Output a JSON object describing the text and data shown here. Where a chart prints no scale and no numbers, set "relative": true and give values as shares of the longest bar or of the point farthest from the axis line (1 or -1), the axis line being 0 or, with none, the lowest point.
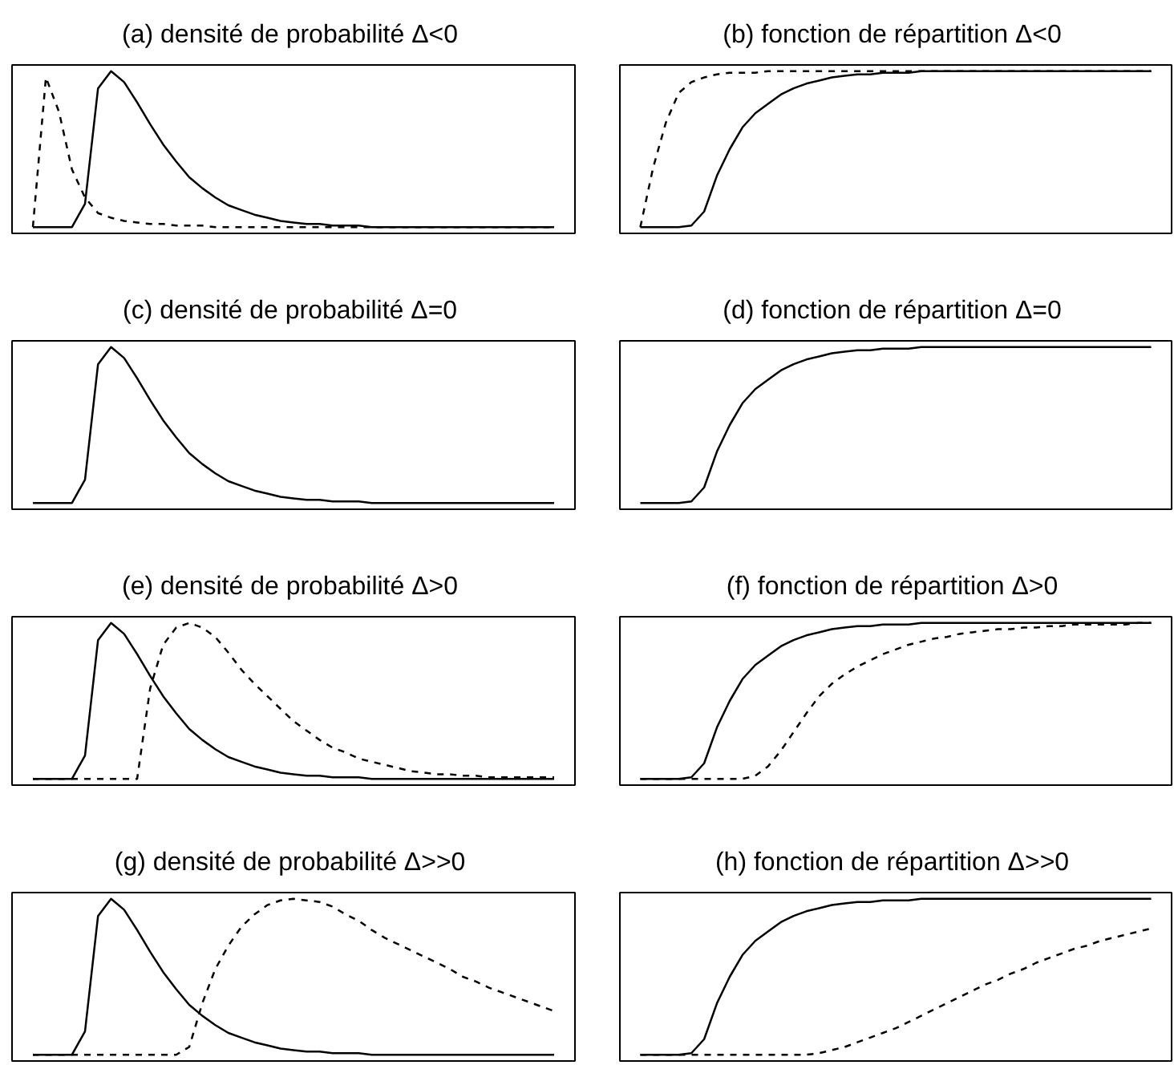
{
  "chart_data": [
    {
      "type": "line",
      "title": "(a) densité de probabilité  Δ<0",
      "relative": true,
      "tick_labels": false,
      "categories": [
        null,
        null,
        null,
        null,
        null,
        null,
        null,
        null,
        null,
        null,
        null,
        null,
        null,
        null,
        null,
        null,
        null,
        null,
        null,
        null,
        null,
        null,
        null,
        null,
        null,
        null,
        null,
        null,
        null,
        null,
        null,
        null,
        null,
        null,
        null,
        null,
        null,
        null,
        null,
        null,
        null
      ],
      "series": [
        {
          "color": "#000000",
          "line_style": "solid",
          "values": [
            0,
            0,
            0,
            0,
            0.15,
            0.89,
            1,
            0.93,
            0.8,
            0.66,
            0.53,
            0.42,
            0.32,
            0.25,
            0.19,
            0.14,
            0.11,
            0.08,
            0.06,
            0.04,
            0.03,
            0.02,
            0.02,
            0.01,
            0.01,
            0.01,
            0,
            0,
            0,
            0,
            0,
            0,
            0,
            0,
            0,
            0,
            0,
            0,
            0,
            0,
            0
          ]
        },
        {
          "color": "#000000",
          "line_style": "dashed",
          "values": [
            0,
            0.96,
            0.74,
            0.37,
            0.19,
            0.09,
            0.06,
            0.04,
            0.03,
            0.02,
            0.02,
            0.01,
            0.01,
            0.01,
            0,
            0,
            0,
            0,
            0,
            0,
            0,
            0,
            0,
            0,
            0,
            0,
            0,
            0,
            0,
            0,
            0,
            0,
            0,
            0,
            0,
            0,
            0,
            0,
            0,
            0,
            0
          ]
        }
      ]
    },
    {
      "type": "line",
      "title": "(b) fonction de répartition  Δ<0",
      "relative": true,
      "tick_labels": false,
      "categories": [
        null,
        null,
        null,
        null,
        null,
        null,
        null,
        null,
        null,
        null,
        null,
        null,
        null,
        null,
        null,
        null,
        null,
        null,
        null,
        null,
        null,
        null,
        null,
        null,
        null,
        null,
        null,
        null,
        null,
        null,
        null,
        null,
        null,
        null,
        null,
        null,
        null,
        null,
        null,
        null,
        null
      ],
      "series": [
        {
          "color": "#000000",
          "line_style": "solid",
          "values": [
            0,
            0,
            0,
            0,
            0.01,
            0.1,
            0.33,
            0.5,
            0.64,
            0.73,
            0.79,
            0.85,
            0.89,
            0.92,
            0.94,
            0.96,
            0.97,
            0.98,
            0.98,
            0.99,
            0.99,
            0.99,
            1,
            1,
            1,
            1,
            1,
            1,
            1,
            1,
            1,
            1,
            1,
            1,
            1,
            1,
            1,
            1,
            1,
            1,
            1
          ]
        },
        {
          "color": "#000000",
          "line_style": "dashed",
          "values": [
            0,
            0.38,
            0.67,
            0.86,
            0.93,
            0.96,
            0.98,
            0.99,
            0.99,
            0.99,
            1,
            1,
            1,
            1,
            1,
            1,
            1,
            1,
            1,
            1,
            1,
            1,
            1,
            1,
            1,
            1,
            1,
            1,
            1,
            1,
            1,
            1,
            1,
            1,
            1,
            1,
            1,
            1,
            1,
            1,
            1
          ]
        }
      ]
    },
    {
      "type": "line",
      "title": "(c) densité de probabilité  Δ=0",
      "relative": true,
      "tick_labels": false,
      "categories": [
        null,
        null,
        null,
        null,
        null,
        null,
        null,
        null,
        null,
        null,
        null,
        null,
        null,
        null,
        null,
        null,
        null,
        null,
        null,
        null,
        null,
        null,
        null,
        null,
        null,
        null,
        null,
        null,
        null,
        null,
        null,
        null,
        null,
        null,
        null,
        null,
        null,
        null,
        null,
        null,
        null
      ],
      "series": [
        {
          "color": "#000000",
          "line_style": "solid",
          "values": [
            0,
            0,
            0,
            0,
            0.15,
            0.89,
            1,
            0.93,
            0.8,
            0.66,
            0.53,
            0.42,
            0.32,
            0.25,
            0.19,
            0.14,
            0.11,
            0.08,
            0.06,
            0.04,
            0.03,
            0.02,
            0.02,
            0.01,
            0.01,
            0.01,
            0,
            0,
            0,
            0,
            0,
            0,
            0,
            0,
            0,
            0,
            0,
            0,
            0,
            0,
            0
          ]
        }
      ]
    },
    {
      "type": "line",
      "title": "(d) fonction de répartition  Δ=0",
      "relative": true,
      "tick_labels": false,
      "categories": [
        null,
        null,
        null,
        null,
        null,
        null,
        null,
        null,
        null,
        null,
        null,
        null,
        null,
        null,
        null,
        null,
        null,
        null,
        null,
        null,
        null,
        null,
        null,
        null,
        null,
        null,
        null,
        null,
        null,
        null,
        null,
        null,
        null,
        null,
        null,
        null,
        null,
        null,
        null,
        null,
        null
      ],
      "series": [
        {
          "color": "#000000",
          "line_style": "solid",
          "values": [
            0,
            0,
            0,
            0,
            0.01,
            0.1,
            0.33,
            0.5,
            0.64,
            0.73,
            0.79,
            0.85,
            0.89,
            0.92,
            0.94,
            0.96,
            0.97,
            0.98,
            0.98,
            0.99,
            0.99,
            0.99,
            1,
            1,
            1,
            1,
            1,
            1,
            1,
            1,
            1,
            1,
            1,
            1,
            1,
            1,
            1,
            1,
            1,
            1,
            1
          ]
        }
      ]
    },
    {
      "type": "line",
      "title": "(e) densité de probabilité  Δ>0",
      "relative": true,
      "tick_labels": false,
      "categories": [
        null,
        null,
        null,
        null,
        null,
        null,
        null,
        null,
        null,
        null,
        null,
        null,
        null,
        null,
        null,
        null,
        null,
        null,
        null,
        null,
        null,
        null,
        null,
        null,
        null,
        null,
        null,
        null,
        null,
        null,
        null,
        null,
        null,
        null,
        null,
        null,
        null,
        null,
        null,
        null,
        null
      ],
      "series": [
        {
          "color": "#000000",
          "line_style": "solid",
          "values": [
            0,
            0,
            0,
            0,
            0.15,
            0.89,
            1,
            0.93,
            0.8,
            0.66,
            0.53,
            0.42,
            0.32,
            0.25,
            0.19,
            0.14,
            0.11,
            0.08,
            0.06,
            0.04,
            0.03,
            0.02,
            0.02,
            0.01,
            0.01,
            0.01,
            0,
            0,
            0,
            0,
            0,
            0,
            0,
            0,
            0,
            0,
            0,
            0,
            0,
            0,
            0
          ]
        },
        {
          "color": "#000000",
          "line_style": "dashed",
          "values": [
            0,
            0,
            0,
            0,
            0,
            0,
            0,
            0,
            0,
            0.58,
            0.86,
            0.97,
            1,
            0.97,
            0.91,
            0.81,
            0.7,
            0.61,
            0.53,
            0.45,
            0.37,
            0.31,
            0.25,
            0.2,
            0.17,
            0.13,
            0.11,
            0.09,
            0.07,
            0.05,
            0.04,
            0.03,
            0.03,
            0.02,
            0.02,
            0.01,
            0.01,
            0.01,
            0.01,
            0.01,
            0.01
          ]
        }
      ]
    },
    {
      "type": "line",
      "title": "(f) fonction de répartition  Δ>0",
      "relative": true,
      "tick_labels": false,
      "categories": [
        null,
        null,
        null,
        null,
        null,
        null,
        null,
        null,
        null,
        null,
        null,
        null,
        null,
        null,
        null,
        null,
        null,
        null,
        null,
        null,
        null,
        null,
        null,
        null,
        null,
        null,
        null,
        null,
        null,
        null,
        null,
        null,
        null,
        null,
        null,
        null,
        null,
        null,
        null,
        null,
        null
      ],
      "series": [
        {
          "color": "#000000",
          "line_style": "solid",
          "values": [
            0,
            0,
            0,
            0,
            0.01,
            0.1,
            0.33,
            0.5,
            0.64,
            0.73,
            0.79,
            0.85,
            0.89,
            0.92,
            0.94,
            0.96,
            0.97,
            0.98,
            0.98,
            0.99,
            0.99,
            0.99,
            1,
            1,
            1,
            1,
            1,
            1,
            1,
            1,
            1,
            1,
            1,
            1,
            1,
            1,
            1,
            1,
            1,
            1,
            1
          ]
        },
        {
          "color": "#000000",
          "line_style": "dashed",
          "values": [
            0,
            0,
            0,
            0,
            0,
            0,
            0,
            0,
            0,
            0.02,
            0.08,
            0.18,
            0.3,
            0.42,
            0.53,
            0.61,
            0.67,
            0.72,
            0.76,
            0.8,
            0.83,
            0.86,
            0.88,
            0.9,
            0.91,
            0.93,
            0.94,
            0.95,
            0.96,
            0.96,
            0.97,
            0.97,
            0.98,
            0.98,
            0.99,
            0.99,
            0.99,
            0.99,
            0.99,
            1,
            1
          ]
        }
      ]
    },
    {
      "type": "line",
      "title": "(g) densité de probabilité  Δ>>0",
      "relative": true,
      "tick_labels": false,
      "categories": [
        null,
        null,
        null,
        null,
        null,
        null,
        null,
        null,
        null,
        null,
        null,
        null,
        null,
        null,
        null,
        null,
        null,
        null,
        null,
        null,
        null,
        null,
        null,
        null,
        null,
        null,
        null,
        null,
        null,
        null,
        null,
        null,
        null,
        null,
        null,
        null,
        null,
        null,
        null,
        null,
        null
      ],
      "series": [
        {
          "color": "#000000",
          "line_style": "solid",
          "values": [
            0,
            0,
            0,
            0,
            0.15,
            0.89,
            1,
            0.93,
            0.8,
            0.66,
            0.53,
            0.42,
            0.32,
            0.25,
            0.19,
            0.14,
            0.11,
            0.08,
            0.06,
            0.04,
            0.03,
            0.02,
            0.02,
            0.01,
            0.01,
            0.01,
            0,
            0,
            0,
            0,
            0,
            0,
            0,
            0,
            0,
            0,
            0,
            0,
            0,
            0,
            0
          ]
        },
        {
          "color": "#000000",
          "line_style": "dashed",
          "values": [
            0,
            0,
            0,
            0,
            0,
            0,
            0,
            0,
            0,
            0,
            0,
            0,
            0.05,
            0.33,
            0.55,
            0.7,
            0.82,
            0.9,
            0.96,
            0.99,
            1,
            0.99,
            0.98,
            0.95,
            0.9,
            0.86,
            0.8,
            0.75,
            0.71,
            0.67,
            0.63,
            0.59,
            0.55,
            0.5,
            0.47,
            0.43,
            0.4,
            0.37,
            0.34,
            0.31,
            0.28
          ]
        }
      ]
    },
    {
      "type": "line",
      "title": "(h) fonction de répartition  Δ>>0",
      "relative": true,
      "tick_labels": false,
      "categories": [
        null,
        null,
        null,
        null,
        null,
        null,
        null,
        null,
        null,
        null,
        null,
        null,
        null,
        null,
        null,
        null,
        null,
        null,
        null,
        null,
        null,
        null,
        null,
        null,
        null,
        null,
        null,
        null,
        null,
        null,
        null,
        null,
        null,
        null,
        null,
        null,
        null,
        null,
        null,
        null,
        null
      ],
      "series": [
        {
          "color": "#000000",
          "line_style": "solid",
          "values": [
            0,
            0,
            0,
            0,
            0.01,
            0.1,
            0.33,
            0.5,
            0.64,
            0.73,
            0.79,
            0.85,
            0.89,
            0.92,
            0.94,
            0.96,
            0.97,
            0.98,
            0.98,
            0.99,
            0.99,
            0.99,
            1,
            1,
            1,
            1,
            1,
            1,
            1,
            1,
            1,
            1,
            1,
            1,
            1,
            1,
            1,
            1,
            1,
            1,
            1
          ]
        },
        {
          "color": "#000000",
          "line_style": "dashed",
          "values": [
            0,
            0,
            0,
            0,
            0,
            0,
            0,
            0,
            0,
            0,
            0,
            0,
            0,
            0,
            0.01,
            0.03,
            0.05,
            0.08,
            0.11,
            0.14,
            0.17,
            0.21,
            0.25,
            0.29,
            0.33,
            0.37,
            0.41,
            0.45,
            0.48,
            0.52,
            0.55,
            0.59,
            0.62,
            0.65,
            0.68,
            0.7,
            0.73,
            0.75,
            0.77,
            0.79,
            0.81
          ]
        }
      ]
    }
  ]
}
